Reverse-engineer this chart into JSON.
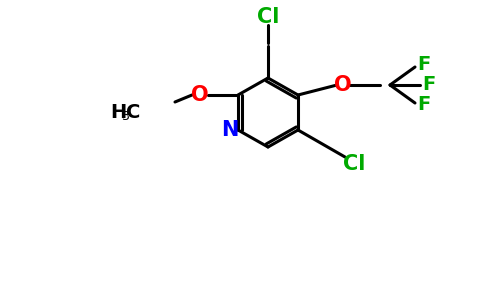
{
  "bg_color": "#ffffff",
  "bond_color": "#000000",
  "bond_width": 2.2,
  "atom_colors": {
    "N": "#0000ff",
    "O": "#ff0000",
    "Cl": "#00aa00",
    "F": "#00aa00",
    "C": "#000000",
    "H": "#000000"
  },
  "font_size_atoms": 14,
  "font_size_subscript": 10,
  "figsize": [
    4.84,
    3.0
  ],
  "dpi": 100
}
